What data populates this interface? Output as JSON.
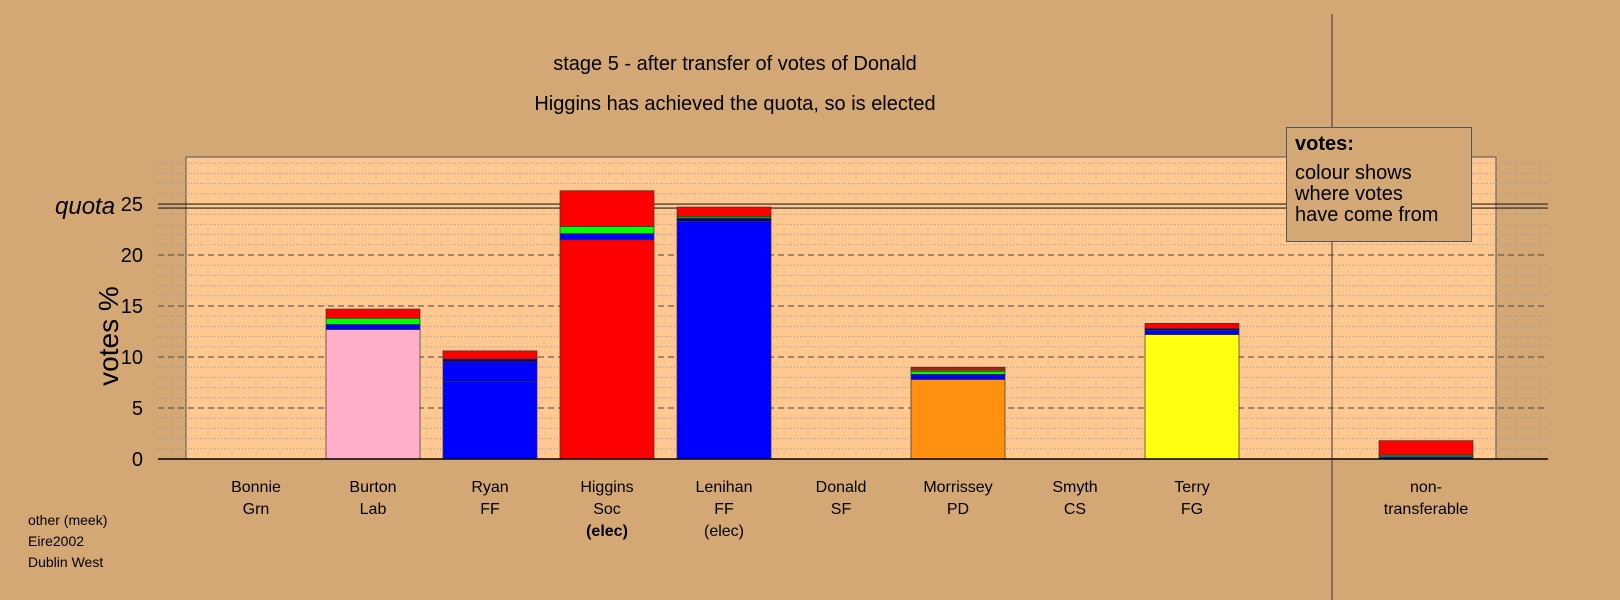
{
  "title": {
    "line1": "stage 5 - after transfer of votes of Donald",
    "line2": "Higgins has achieved the quota, so is elected"
  },
  "legend": {
    "title": "votes:",
    "line1": "colour shows",
    "line2": "where votes",
    "line3": "have come from"
  },
  "footer": {
    "line1": "other (meek)",
    "line2": "Eire2002",
    "line3": "Dublin West"
  },
  "candidates": [
    {
      "name": "Bonnie",
      "party": "Grn",
      "status": ""
    },
    {
      "name": "Burton",
      "party": "Lab",
      "status": ""
    },
    {
      "name": "Ryan",
      "party": "FF",
      "status": ""
    },
    {
      "name": "Higgins",
      "party": "Soc",
      "status": "(elec)"
    },
    {
      "name": "Lenihan",
      "party": "FF",
      "status": "(elec)"
    },
    {
      "name": "Donald",
      "party": "SF",
      "status": ""
    },
    {
      "name": "Morrissey",
      "party": "PD",
      "status": ""
    },
    {
      "name": "Smyth",
      "party": "CS",
      "status": ""
    },
    {
      "name": "Terry",
      "party": "FG",
      "status": ""
    },
    {
      "name": "non-",
      "party": "transferable",
      "status": ""
    }
  ],
  "chart_data": {
    "type": "bar",
    "stacked": true,
    "ylabel": "votes %",
    "ylim": [
      0,
      30
    ],
    "yticks": [
      0,
      5,
      10,
      15,
      20,
      25
    ],
    "quota": 24.8,
    "quota_label": "quota",
    "categories": [
      "Bonnie Grn",
      "Burton Lab",
      "Ryan FF",
      "Higgins Soc",
      "Lenihan FF",
      "Donald SF",
      "Morrissey PD",
      "Smyth CS",
      "Terry FG",
      "non-transferable"
    ],
    "bars": [
      {
        "segments": []
      },
      {
        "segments": [
          {
            "value": 12.7,
            "color": "#FFB0C8"
          },
          {
            "value": 0.5,
            "color": "#0000FF"
          },
          {
            "value": 0.6,
            "color": "#00FF00"
          },
          {
            "value": 0.9,
            "color": "#FF0000"
          }
        ]
      },
      {
        "segments": [
          {
            "value": 7.6,
            "color": "#0000FF"
          },
          {
            "value": 1.9,
            "color": "#0000FF"
          },
          {
            "value": 0.3,
            "color": "#000080"
          },
          {
            "value": 0.8,
            "color": "#FF0000"
          }
        ]
      },
      {
        "segments": [
          {
            "value": 21.5,
            "color": "#FF0000"
          },
          {
            "value": 0.6,
            "color": "#0000FF"
          },
          {
            "value": 0.7,
            "color": "#00FF00"
          },
          {
            "value": 3.5,
            "color": "#FF0000"
          }
        ]
      },
      {
        "segments": [
          {
            "value": 23.3,
            "color": "#0000FF"
          },
          {
            "value": 0.3,
            "color": "#000080"
          },
          {
            "value": 0.2,
            "color": "#00AA00"
          },
          {
            "value": 0.9,
            "color": "#FF0000"
          }
        ]
      },
      {
        "segments": []
      },
      {
        "segments": [
          {
            "value": 7.8,
            "color": "#FF9010"
          },
          {
            "value": 0.5,
            "color": "#0000FF"
          },
          {
            "value": 0.3,
            "color": "#00FF00"
          },
          {
            "value": 0.2,
            "color": "#806000"
          },
          {
            "value": 0.2,
            "color": "#FF0000"
          }
        ]
      },
      {
        "segments": []
      },
      {
        "segments": [
          {
            "value": 12.2,
            "color": "#FFFF10"
          },
          {
            "value": 0.4,
            "color": "#0000FF"
          },
          {
            "value": 0.2,
            "color": "#000080"
          },
          {
            "value": 0.5,
            "color": "#FF0000"
          }
        ]
      },
      {
        "segments": [
          {
            "value": 0.2,
            "color": "#0000FF"
          },
          {
            "value": 0.2,
            "color": "#00AA00"
          },
          {
            "value": 1.4,
            "color": "#FF0000"
          }
        ]
      }
    ]
  }
}
